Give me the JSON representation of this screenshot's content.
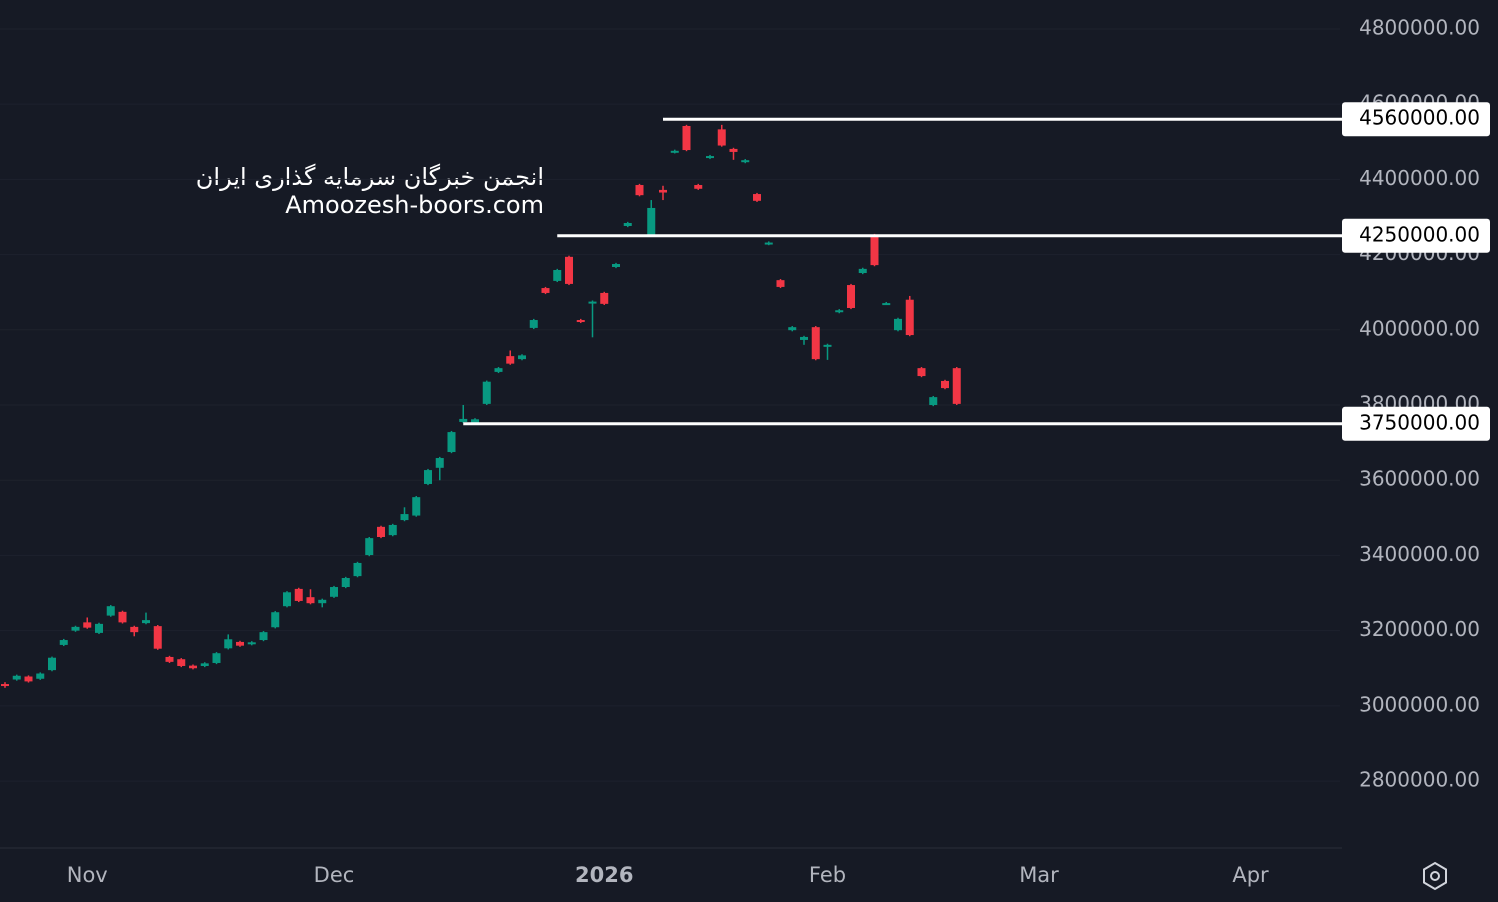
{
  "chart_data": {
    "type": "candlestick",
    "watermark": [
      "انجمن خبرگان سرمایه گذاری ایران",
      "Amoozesh-boors.com"
    ],
    "categories": [
      null,
      null,
      null,
      null,
      null,
      null,
      null,
      "Nov",
      null,
      null,
      null,
      null,
      null,
      null,
      null,
      null,
      null,
      null,
      null,
      null,
      null,
      null,
      null,
      null,
      null,
      null,
      null,
      null,
      "Dec",
      null,
      null,
      null,
      null,
      null,
      null,
      null,
      null,
      null,
      null,
      null,
      null,
      null,
      null,
      null,
      null,
      null,
      null,
      null,
      null,
      null,
      null,
      "2026",
      null,
      null,
      null,
      null,
      null,
      null,
      null,
      null,
      null,
      null,
      null,
      null,
      null,
      null,
      null,
      null,
      null,
      null,
      "Feb",
      null,
      null,
      null,
      null,
      null,
      null,
      null,
      null,
      null,
      null,
      null,
      null,
      null,
      null,
      null,
      null,
      null,
      "Mar",
      null,
      null,
      null,
      null,
      null,
      null,
      null,
      null,
      null,
      null,
      null,
      null,
      null,
      null,
      null,
      null,
      null,
      "Apr"
    ],
    "open": [
      3058000,
      3070000,
      3078000,
      3072000,
      3095000,
      3162000,
      3200000,
      3222000,
      3194000,
      3240000,
      3250000,
      3210000,
      3220000,
      3212000,
      3130000,
      3124000,
      3107000,
      3106000,
      3114000,
      3153000,
      3170000,
      3164000,
      3175000,
      3209000,
      3265000,
      3311000,
      3289000,
      3273000,
      3290000,
      3316000,
      3345000,
      3401000,
      3476000,
      3454000,
      3494000,
      3506000,
      3590000,
      3633000,
      3675000,
      3755000,
      3752000,
      3803000,
      3888000,
      3930000,
      3922000,
      4005000,
      4111000,
      4130000,
      4194000,
      4026000,
      4070000,
      4098000,
      4167000,
      4276000,
      4385000,
      4252000,
      4372000,
      4472000,
      4542000,
      4385000,
      4457000,
      4533000,
      4481000,
      4446000,
      4361000,
      4228000,
      4132000,
      3999000,
      3973000,
      4007000,
      3955000,
      4047000,
      4119000,
      4151000,
      4252000,
      4069000,
      3999000,
      4080000,
      3898000,
      3800000,
      3864000,
      3898000,
      null,
      null,
      null,
      null,
      null,
      null,
      null,
      null,
      null,
      null,
      null,
      null,
      null,
      null,
      null,
      null,
      null,
      null,
      null,
      null,
      null,
      null,
      null,
      null,
      null
    ],
    "high": [
      3063000,
      3083000,
      3081000,
      3089000,
      3131000,
      3178000,
      3213000,
      3235000,
      3221000,
      3268000,
      3253000,
      3213000,
      3248000,
      3215000,
      3133000,
      3127000,
      3110000,
      3116000,
      3143000,
      3190000,
      3173000,
      3172000,
      3199000,
      3252000,
      3305000,
      3314000,
      3310000,
      3285000,
      3319000,
      3343000,
      3383000,
      3449000,
      3479000,
      3484000,
      3528000,
      3558000,
      3630000,
      3662000,
      3731000,
      3800000,
      3765000,
      3865000,
      3901000,
      3945000,
      3935000,
      4029000,
      4114000,
      4162000,
      4197000,
      4029000,
      4078000,
      4101000,
      4178000,
      4287000,
      4388000,
      4345000,
      4383000,
      4479000,
      4545000,
      4388000,
      4465000,
      4545000,
      4484000,
      4454000,
      4364000,
      4235000,
      4135000,
      4010000,
      3984000,
      4010000,
      3963000,
      4055000,
      4122000,
      4165000,
      4255000,
      4074000,
      4032000,
      4090000,
      3901000,
      3824000,
      3867000,
      3901000,
      null,
      null,
      null,
      null,
      null,
      null,
      null,
      null,
      null,
      null,
      null,
      null,
      null,
      null,
      null,
      null,
      null,
      null,
      null,
      null,
      null,
      null,
      null,
      null,
      null
    ],
    "low": [
      3048000,
      3067000,
      3062000,
      3069000,
      3092000,
      3159000,
      3197000,
      3205000,
      3191000,
      3237000,
      3219000,
      3185000,
      3217000,
      3149000,
      3114000,
      3103000,
      3097000,
      3103000,
      3111000,
      3150000,
      3157000,
      3161000,
      3172000,
      3206000,
      3262000,
      3276000,
      3270000,
      3262000,
      3287000,
      3313000,
      3342000,
      3398000,
      3446000,
      3451000,
      3491000,
      3503000,
      3587000,
      3600000,
      3672000,
      3752000,
      3749000,
      3800000,
      3885000,
      3907000,
      3919000,
      4002000,
      4095000,
      4127000,
      4119000,
      4018000,
      3980000,
      4066000,
      4164000,
      4273000,
      4355000,
      4249000,
      4345000,
      4469000,
      4475000,
      4372000,
      4454000,
      4487000,
      4452000,
      4443000,
      4340000,
      4225000,
      4111000,
      3996000,
      3960000,
      3919000,
      3920000,
      4044000,
      4055000,
      4148000,
      4169000,
      4066000,
      3996000,
      3983000,
      3874000,
      3797000,
      3842000,
      3800000,
      null,
      null,
      null,
      null,
      null,
      null,
      null,
      null,
      null,
      null,
      null,
      null,
      null,
      null,
      null,
      null,
      null,
      null,
      null,
      null,
      null,
      null,
      null,
      null,
      null
    ],
    "close": [
      3053000,
      3080000,
      3065000,
      3086000,
      3128000,
      3175000,
      3210000,
      3208000,
      3218000,
      3265000,
      3222000,
      3196000,
      3228000,
      3152000,
      3117000,
      3106000,
      3100000,
      3113000,
      3140000,
      3177000,
      3160000,
      3169000,
      3196000,
      3249000,
      3302000,
      3279000,
      3273000,
      3282000,
      3316000,
      3340000,
      3380000,
      3446000,
      3449000,
      3481000,
      3510000,
      3555000,
      3627000,
      3659000,
      3728000,
      3763000,
      3762000,
      3862000,
      3898000,
      3910000,
      3932000,
      4026000,
      4098000,
      4159000,
      4122000,
      4021000,
      4075000,
      4069000,
      4175000,
      4284000,
      4358000,
      4324000,
      4365000,
      4476000,
      4478000,
      4375000,
      4462000,
      4490000,
      4473000,
      4451000,
      4343000,
      4232000,
      4114000,
      4007000,
      3981000,
      3922000,
      3960000,
      4052000,
      4058000,
      4162000,
      4172000,
      4071000,
      4029000,
      3986000,
      3877000,
      3821000,
      3845000,
      3803000,
      null,
      null,
      null,
      null,
      null,
      null,
      null,
      null,
      null,
      null,
      null,
      null,
      null,
      null,
      null,
      null,
      null,
      null,
      null,
      null,
      null,
      null,
      null,
      null,
      null
    ],
    "up_color": "#089981",
    "down_color": "#f23645",
    "ylim": [
      2622000,
      4877000
    ],
    "yticks": [
      {
        "value": 2800000,
        "label": "2800000.00"
      },
      {
        "value": 3000000,
        "label": "3000000.00"
      },
      {
        "value": 3200000,
        "label": "3200000.00"
      },
      {
        "value": 3400000,
        "label": "3400000.00"
      },
      {
        "value": 3600000,
        "label": "3600000.00"
      },
      {
        "value": 3800000,
        "label": "3800000.00"
      },
      {
        "value": 4000000,
        "label": "4000000.00"
      },
      {
        "value": 4200000,
        "label": "4200000.00"
      },
      {
        "value": 4400000,
        "label": "4400000.00"
      },
      {
        "value": 4600000,
        "label": "4600000.00"
      },
      {
        "value": 4800000,
        "label": "4800000.00"
      }
    ],
    "hlines": [
      {
        "value": 4560000,
        "label": "4560000.00",
        "start_index": 56
      },
      {
        "value": 4250000,
        "label": "4250000.00",
        "start_index": 47
      },
      {
        "value": 3750000,
        "label": "3750000.00",
        "start_index": 39
      }
    ]
  }
}
